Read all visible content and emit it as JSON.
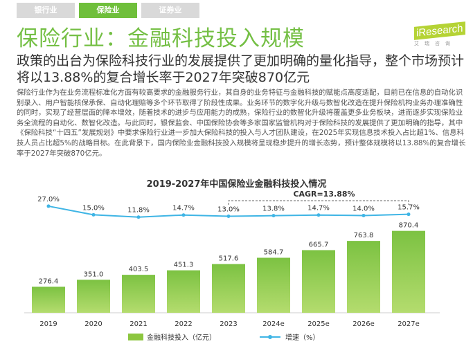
{
  "tabs": [
    {
      "label": "银行业"
    },
    {
      "label": "保险业"
    },
    {
      "label": "证券业"
    }
  ],
  "title": "保险行业：金融科技投入规模",
  "logo": {
    "brand": "iResearch",
    "cn": "艾瑞咨询"
  },
  "subtitle": "政策的出台为保险科技行业的发展提供了更加明确的量化指导，整个市场预计将以13.88%的复合增长率于2027年突破870亿元",
  "body": "保险行业作为在业务流程标准化方面有较高要求的金融服务行业，其自身的业务特征与金融科技的赋能点高度适配，目前已在信息的自动化识别录入、用户智能核保承保、自动化理赔等多个环节取得了阶段性成果。业务环节的数字化升级与数智化改造在提升保险机构业务办理准确性的同时，实现了经营层面的降本增效，随着技术的进步与应用能力的成熟，保险行业的数智化升级将覆盖更多业务板块，进而逐步实现保险业务全流程的自动化、数智化改造。与此同时，银保监会、中国保险协会等多家国家监管机构对于保险科技的发展提供了更加明确的指导，其中《保险科技“十四五”发展规划》中要求保险行业进一步加大保险科技的投入与人才团队建设，在2025年实现信息技术投入占比超1%、信息科技人员占比超5%的战略目标。在此背景下，国内保险业金融科技投入规模将呈现稳步提升的增长态势，预计整体规模将以13.88%的复合增长率于2027年突破870亿元。",
  "chart_data": {
    "type": "bar",
    "title": "2019-2027年中国保险业金融科技投入情况",
    "categories": [
      "2019",
      "2020",
      "2021",
      "2022",
      "2023",
      "2024e",
      "2025e",
      "2026e",
      "2027e"
    ],
    "series": [
      {
        "name": "金融科技投入（亿元）",
        "type": "bar",
        "values": [
          276.4,
          351.0,
          403.5,
          451.3,
          517.6,
          584.7,
          665.7,
          763.8,
          870.4
        ],
        "color": "#8cc63f"
      },
      {
        "name": "增速（%）",
        "type": "line",
        "values": [
          27.0,
          15.0,
          11.8,
          14.7,
          13.0,
          13.8,
          14.7,
          14.0,
          15.7
        ],
        "color": "#3fb5e5"
      }
    ],
    "annotation": "CAGR=13.88%",
    "legend": "bottom"
  }
}
